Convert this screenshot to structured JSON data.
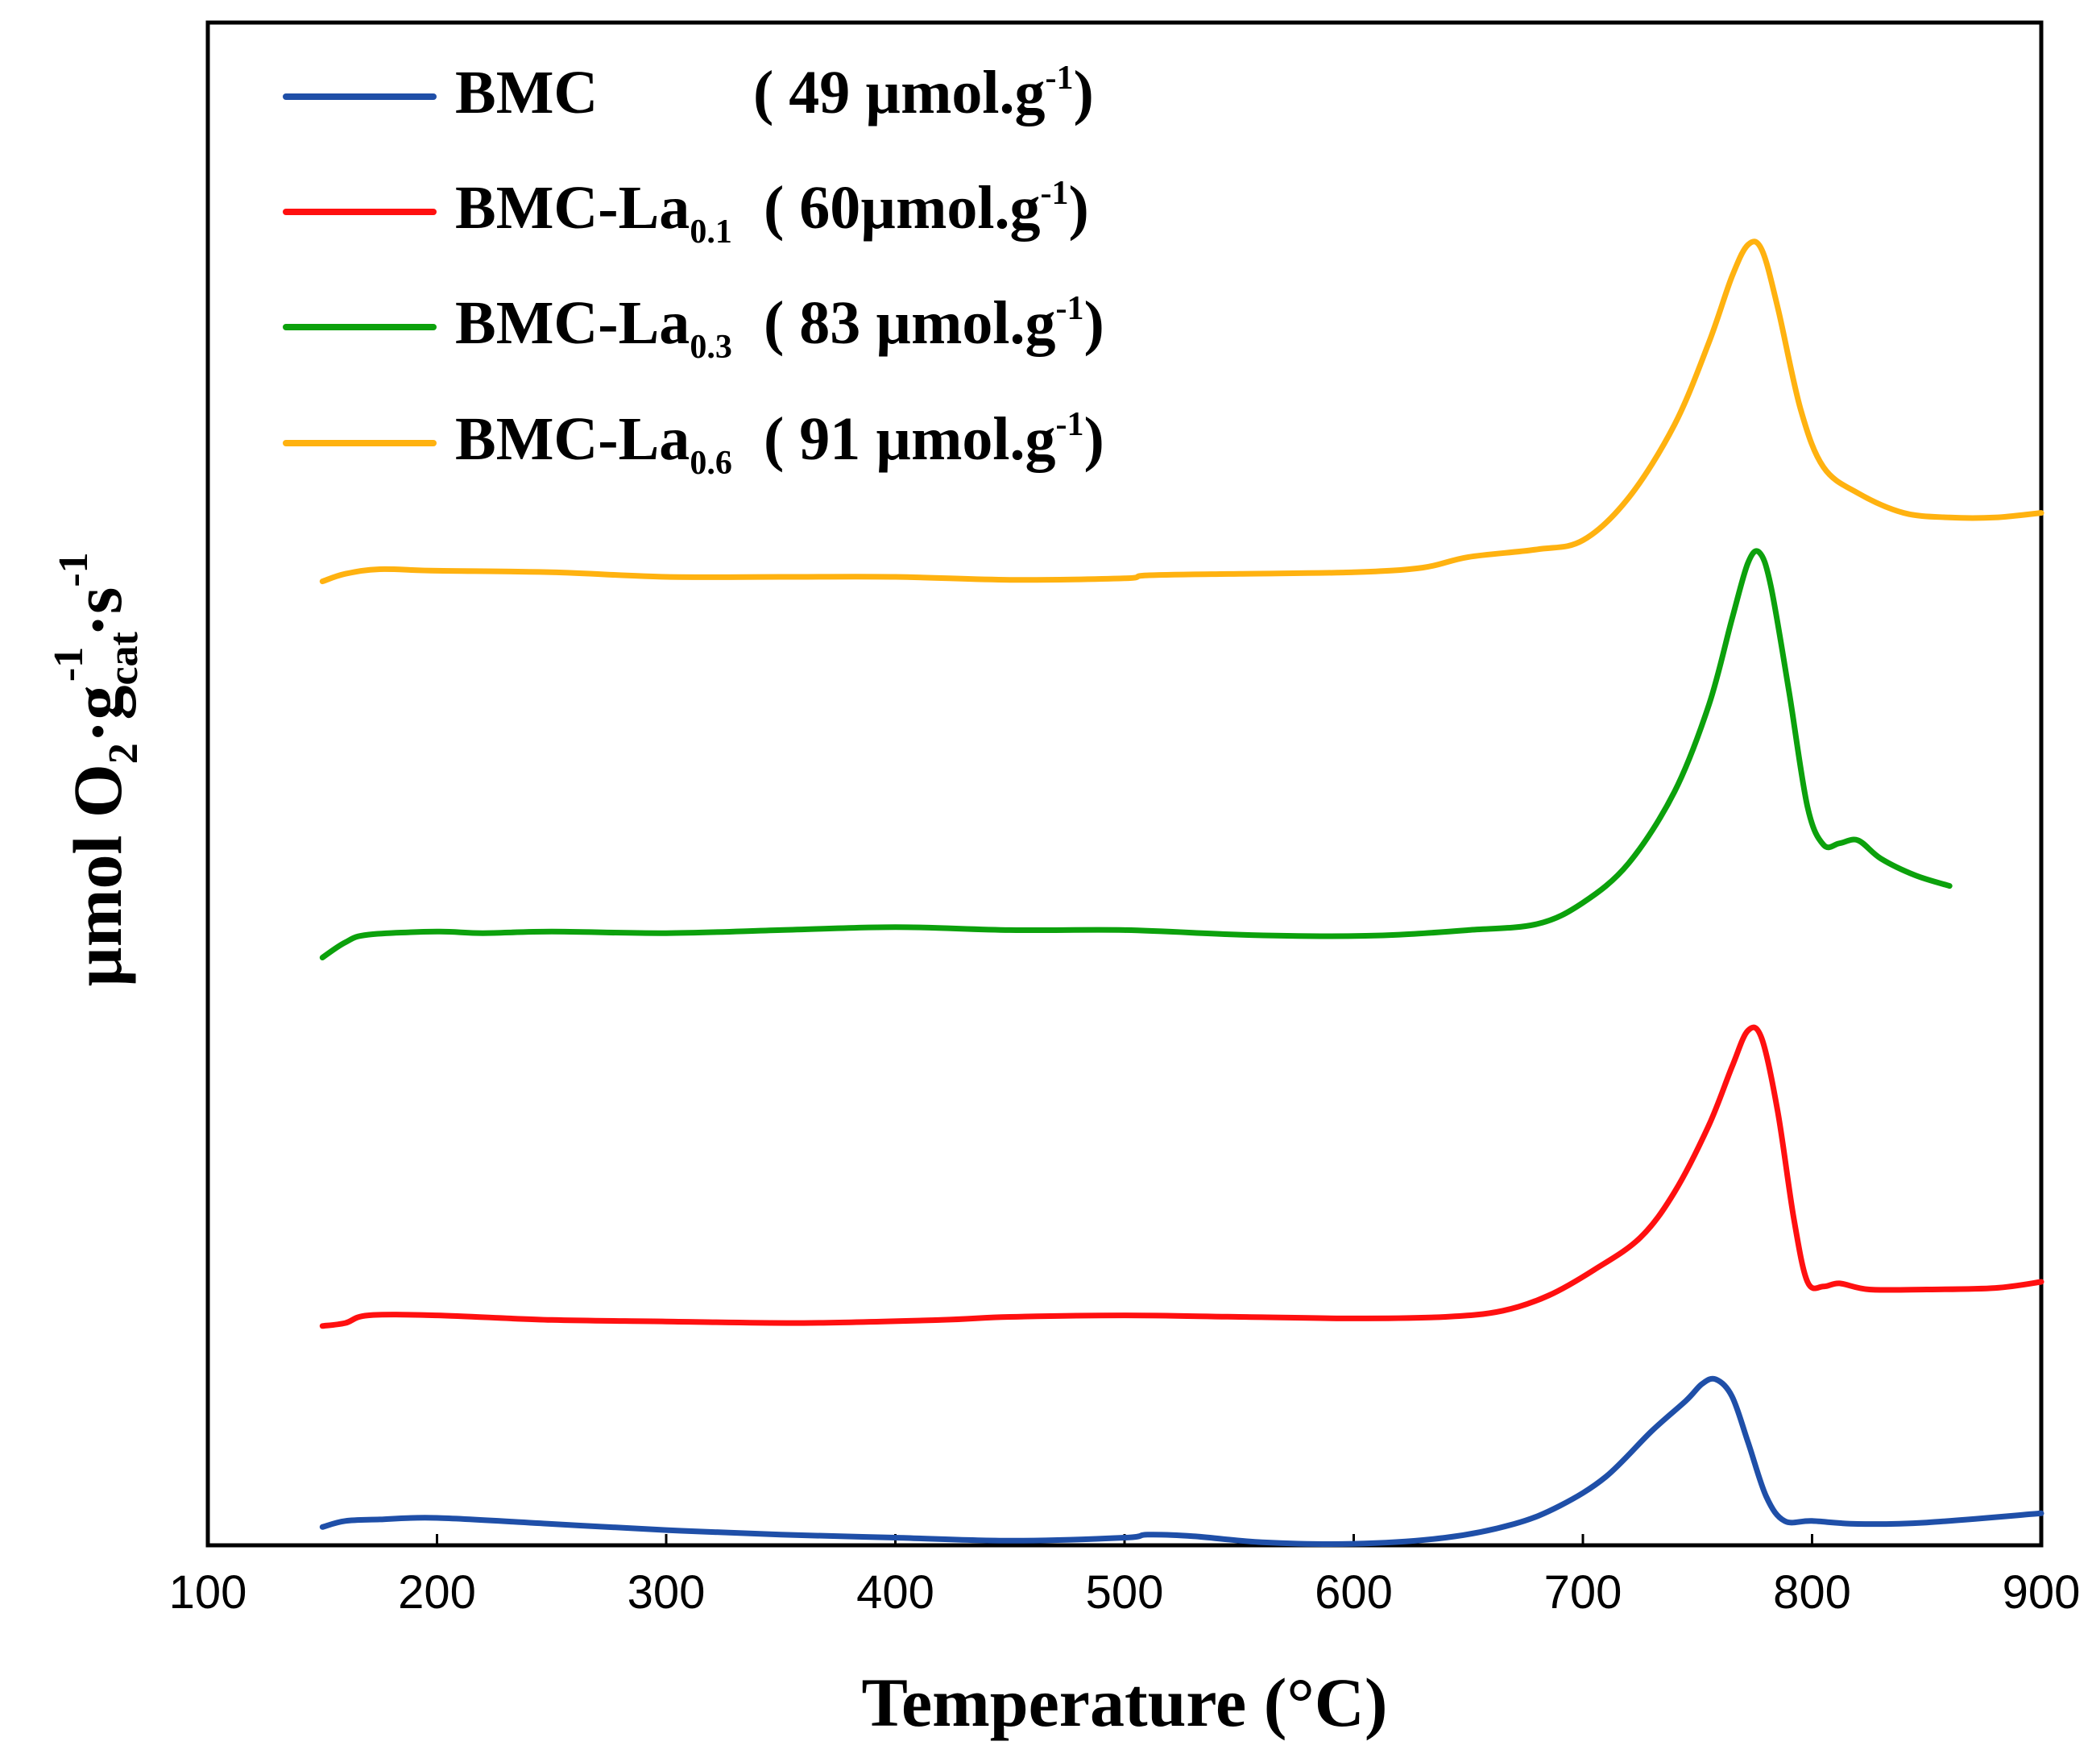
{
  "chart_data": {
    "type": "line",
    "title": "",
    "xlabel": "Temperature (°C)",
    "ylabel": {
      "prefix": "µmol O",
      "sub1": "2",
      "mid": "·g",
      "sub2": "cat",
      "sup1": "-1",
      "mid2": "·s",
      "sup2": "-1"
    },
    "xlim": [
      100,
      900
    ],
    "ylim": [
      0,
      100
    ],
    "xticks": [
      "100",
      "200",
      "300",
      "400",
      "500",
      "600",
      "700",
      "800",
      "900"
    ],
    "yticks": [],
    "grid": false,
    "legend_position": "top-left",
    "series": [
      {
        "name": "BMC",
        "legend": {
          "main": "BMC",
          "sub": "",
          "value": "( 49 µmol.g",
          "sup": "-1",
          "close": ")"
        },
        "color": "#1f4fa8",
        "points": [
          [
            150,
            1.2
          ],
          [
            160,
            1.6
          ],
          [
            175,
            1.7
          ],
          [
            200,
            1.8
          ],
          [
            250,
            1.4
          ],
          [
            300,
            1.0
          ],
          [
            350,
            0.7
          ],
          [
            400,
            0.5
          ],
          [
            450,
            0.3
          ],
          [
            500,
            0.5
          ],
          [
            510,
            0.7
          ],
          [
            530,
            0.6
          ],
          [
            560,
            0.2
          ],
          [
            600,
            0.1
          ],
          [
            640,
            0.5
          ],
          [
            670,
            1.4
          ],
          [
            690,
            2.6
          ],
          [
            710,
            4.5
          ],
          [
            730,
            7.5
          ],
          [
            745,
            9.5
          ],
          [
            752,
            10.6
          ],
          [
            758,
            10.9
          ],
          [
            765,
            9.8
          ],
          [
            772,
            6.8
          ],
          [
            780,
            3.2
          ],
          [
            788,
            1.6
          ],
          [
            800,
            1.6
          ],
          [
            820,
            1.4
          ],
          [
            850,
            1.5
          ],
          [
            900,
            2.1
          ]
        ]
      },
      {
        "name": "BMC-La0.1",
        "legend": {
          "main": "BMC-La",
          "sub": "0.1",
          "value": "( 60µmol.g",
          "sup": "-1",
          "close": ")"
        },
        "color": "#ff1010",
        "points": [
          [
            150,
            14.4
          ],
          [
            160,
            14.6
          ],
          [
            170,
            15.1
          ],
          [
            200,
            15.1
          ],
          [
            250,
            14.8
          ],
          [
            300,
            14.7
          ],
          [
            360,
            14.6
          ],
          [
            420,
            14.8
          ],
          [
            450,
            15.0
          ],
          [
            500,
            15.1
          ],
          [
            550,
            15.0
          ],
          [
            600,
            14.9
          ],
          [
            640,
            15.0
          ],
          [
            665,
            15.4
          ],
          [
            685,
            16.4
          ],
          [
            705,
            18.1
          ],
          [
            725,
            20.2
          ],
          [
            740,
            23.2
          ],
          [
            755,
            27.6
          ],
          [
            765,
            31.4
          ],
          [
            772,
            33.8
          ],
          [
            778,
            33.3
          ],
          [
            785,
            28.5
          ],
          [
            792,
            21.5
          ],
          [
            798,
            17.3
          ],
          [
            805,
            17.0
          ],
          [
            812,
            17.2
          ],
          [
            825,
            16.8
          ],
          [
            850,
            16.8
          ],
          [
            880,
            16.9
          ],
          [
            900,
            17.3
          ]
        ]
      },
      {
        "name": "BMC-La0.3",
        "legend": {
          "main": "BMC-La",
          "sub": "0.3",
          "value": "( 83 µmol.g",
          "sup": "-1",
          "close": ")"
        },
        "color": "#0ca10c",
        "points": [
          [
            150,
            38.6
          ],
          [
            160,
            39.6
          ],
          [
            170,
            40.1
          ],
          [
            200,
            40.3
          ],
          [
            220,
            40.2
          ],
          [
            250,
            40.3
          ],
          [
            300,
            40.2
          ],
          [
            350,
            40.4
          ],
          [
            400,
            40.6
          ],
          [
            450,
            40.4
          ],
          [
            500,
            40.4
          ],
          [
            550,
            40.1
          ],
          [
            590,
            40.0
          ],
          [
            620,
            40.1
          ],
          [
            650,
            40.4
          ],
          [
            680,
            40.8
          ],
          [
            700,
            42.2
          ],
          [
            720,
            44.8
          ],
          [
            740,
            49.5
          ],
          [
            755,
            55.2
          ],
          [
            765,
            60.8
          ],
          [
            772,
            64.5
          ],
          [
            777,
            65.2
          ],
          [
            782,
            63.0
          ],
          [
            790,
            56.0
          ],
          [
            798,
            48.5
          ],
          [
            805,
            46.0
          ],
          [
            812,
            46.1
          ],
          [
            820,
            46.3
          ],
          [
            830,
            45.1
          ],
          [
            845,
            44.0
          ],
          [
            860,
            43.3
          ]
        ]
      },
      {
        "name": "BMC-La0.6",
        "legend": {
          "main": "BMC-La",
          "sub": "0.6",
          "value": "( 91 µmol.g",
          "sup": "-1",
          "close": ")"
        },
        "color": "#ffb210",
        "points": [
          [
            150,
            63.3
          ],
          [
            160,
            63.8
          ],
          [
            175,
            64.1
          ],
          [
            200,
            64.0
          ],
          [
            250,
            63.9
          ],
          [
            300,
            63.6
          ],
          [
            350,
            63.6
          ],
          [
            400,
            63.6
          ],
          [
            450,
            63.4
          ],
          [
            500,
            63.5
          ],
          [
            510,
            63.7
          ],
          [
            550,
            63.8
          ],
          [
            600,
            63.9
          ],
          [
            630,
            64.2
          ],
          [
            650,
            64.9
          ],
          [
            680,
            65.4
          ],
          [
            700,
            66.0
          ],
          [
            720,
            68.8
          ],
          [
            740,
            73.6
          ],
          [
            755,
            79.0
          ],
          [
            765,
            83.3
          ],
          [
            772,
            85.4
          ],
          [
            778,
            85.1
          ],
          [
            785,
            81.3
          ],
          [
            795,
            74.6
          ],
          [
            805,
            70.8
          ],
          [
            820,
            69.1
          ],
          [
            840,
            67.8
          ],
          [
            860,
            67.5
          ],
          [
            880,
            67.5
          ],
          [
            900,
            67.8
          ]
        ]
      }
    ]
  }
}
